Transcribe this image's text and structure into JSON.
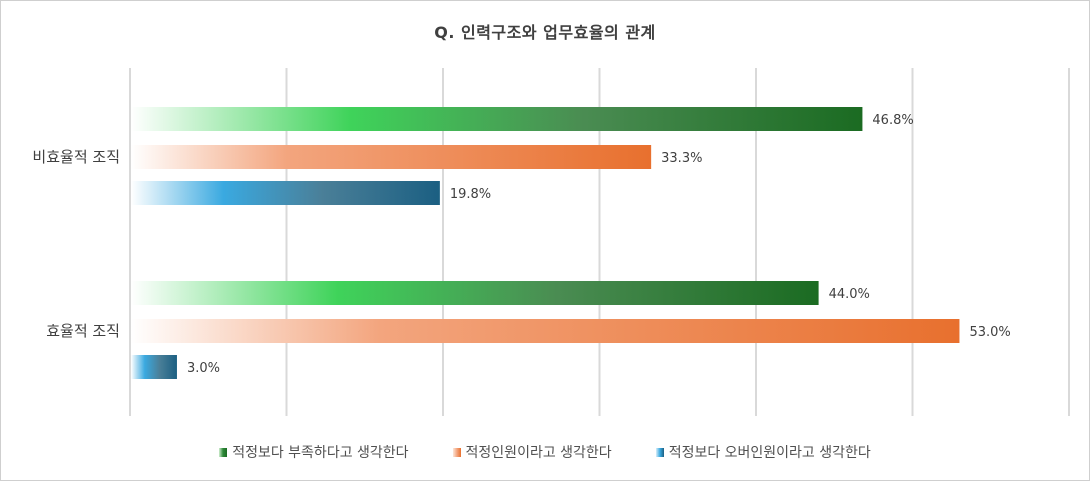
{
  "chart_data": {
    "type": "bar",
    "orientation": "horizontal",
    "title": "Q. 인력구조와 업무효율의 관계",
    "categories": [
      "비효율적 조직",
      "효율적 조직"
    ],
    "series": [
      {
        "name": "적정보다 부족하다고 생각한다",
        "values": [
          46.8,
          44.0
        ],
        "labels": [
          "46.8%",
          "44.0%"
        ],
        "color": "#1b6b22"
      },
      {
        "name": "적정인원이라고 생각한다",
        "values": [
          33.3,
          53.0
        ],
        "labels": [
          "33.3%",
          "53.0%"
        ],
        "color": "#e8702e"
      },
      {
        "name": "적정보다 오버인원이라고 생각한다",
        "values": [
          19.8,
          3.0
        ],
        "labels": [
          "19.8%",
          "3.0%"
        ],
        "color": "#1b5f82"
      }
    ],
    "xlim": [
      0,
      60
    ],
    "grid": true,
    "legend": "bottom"
  }
}
